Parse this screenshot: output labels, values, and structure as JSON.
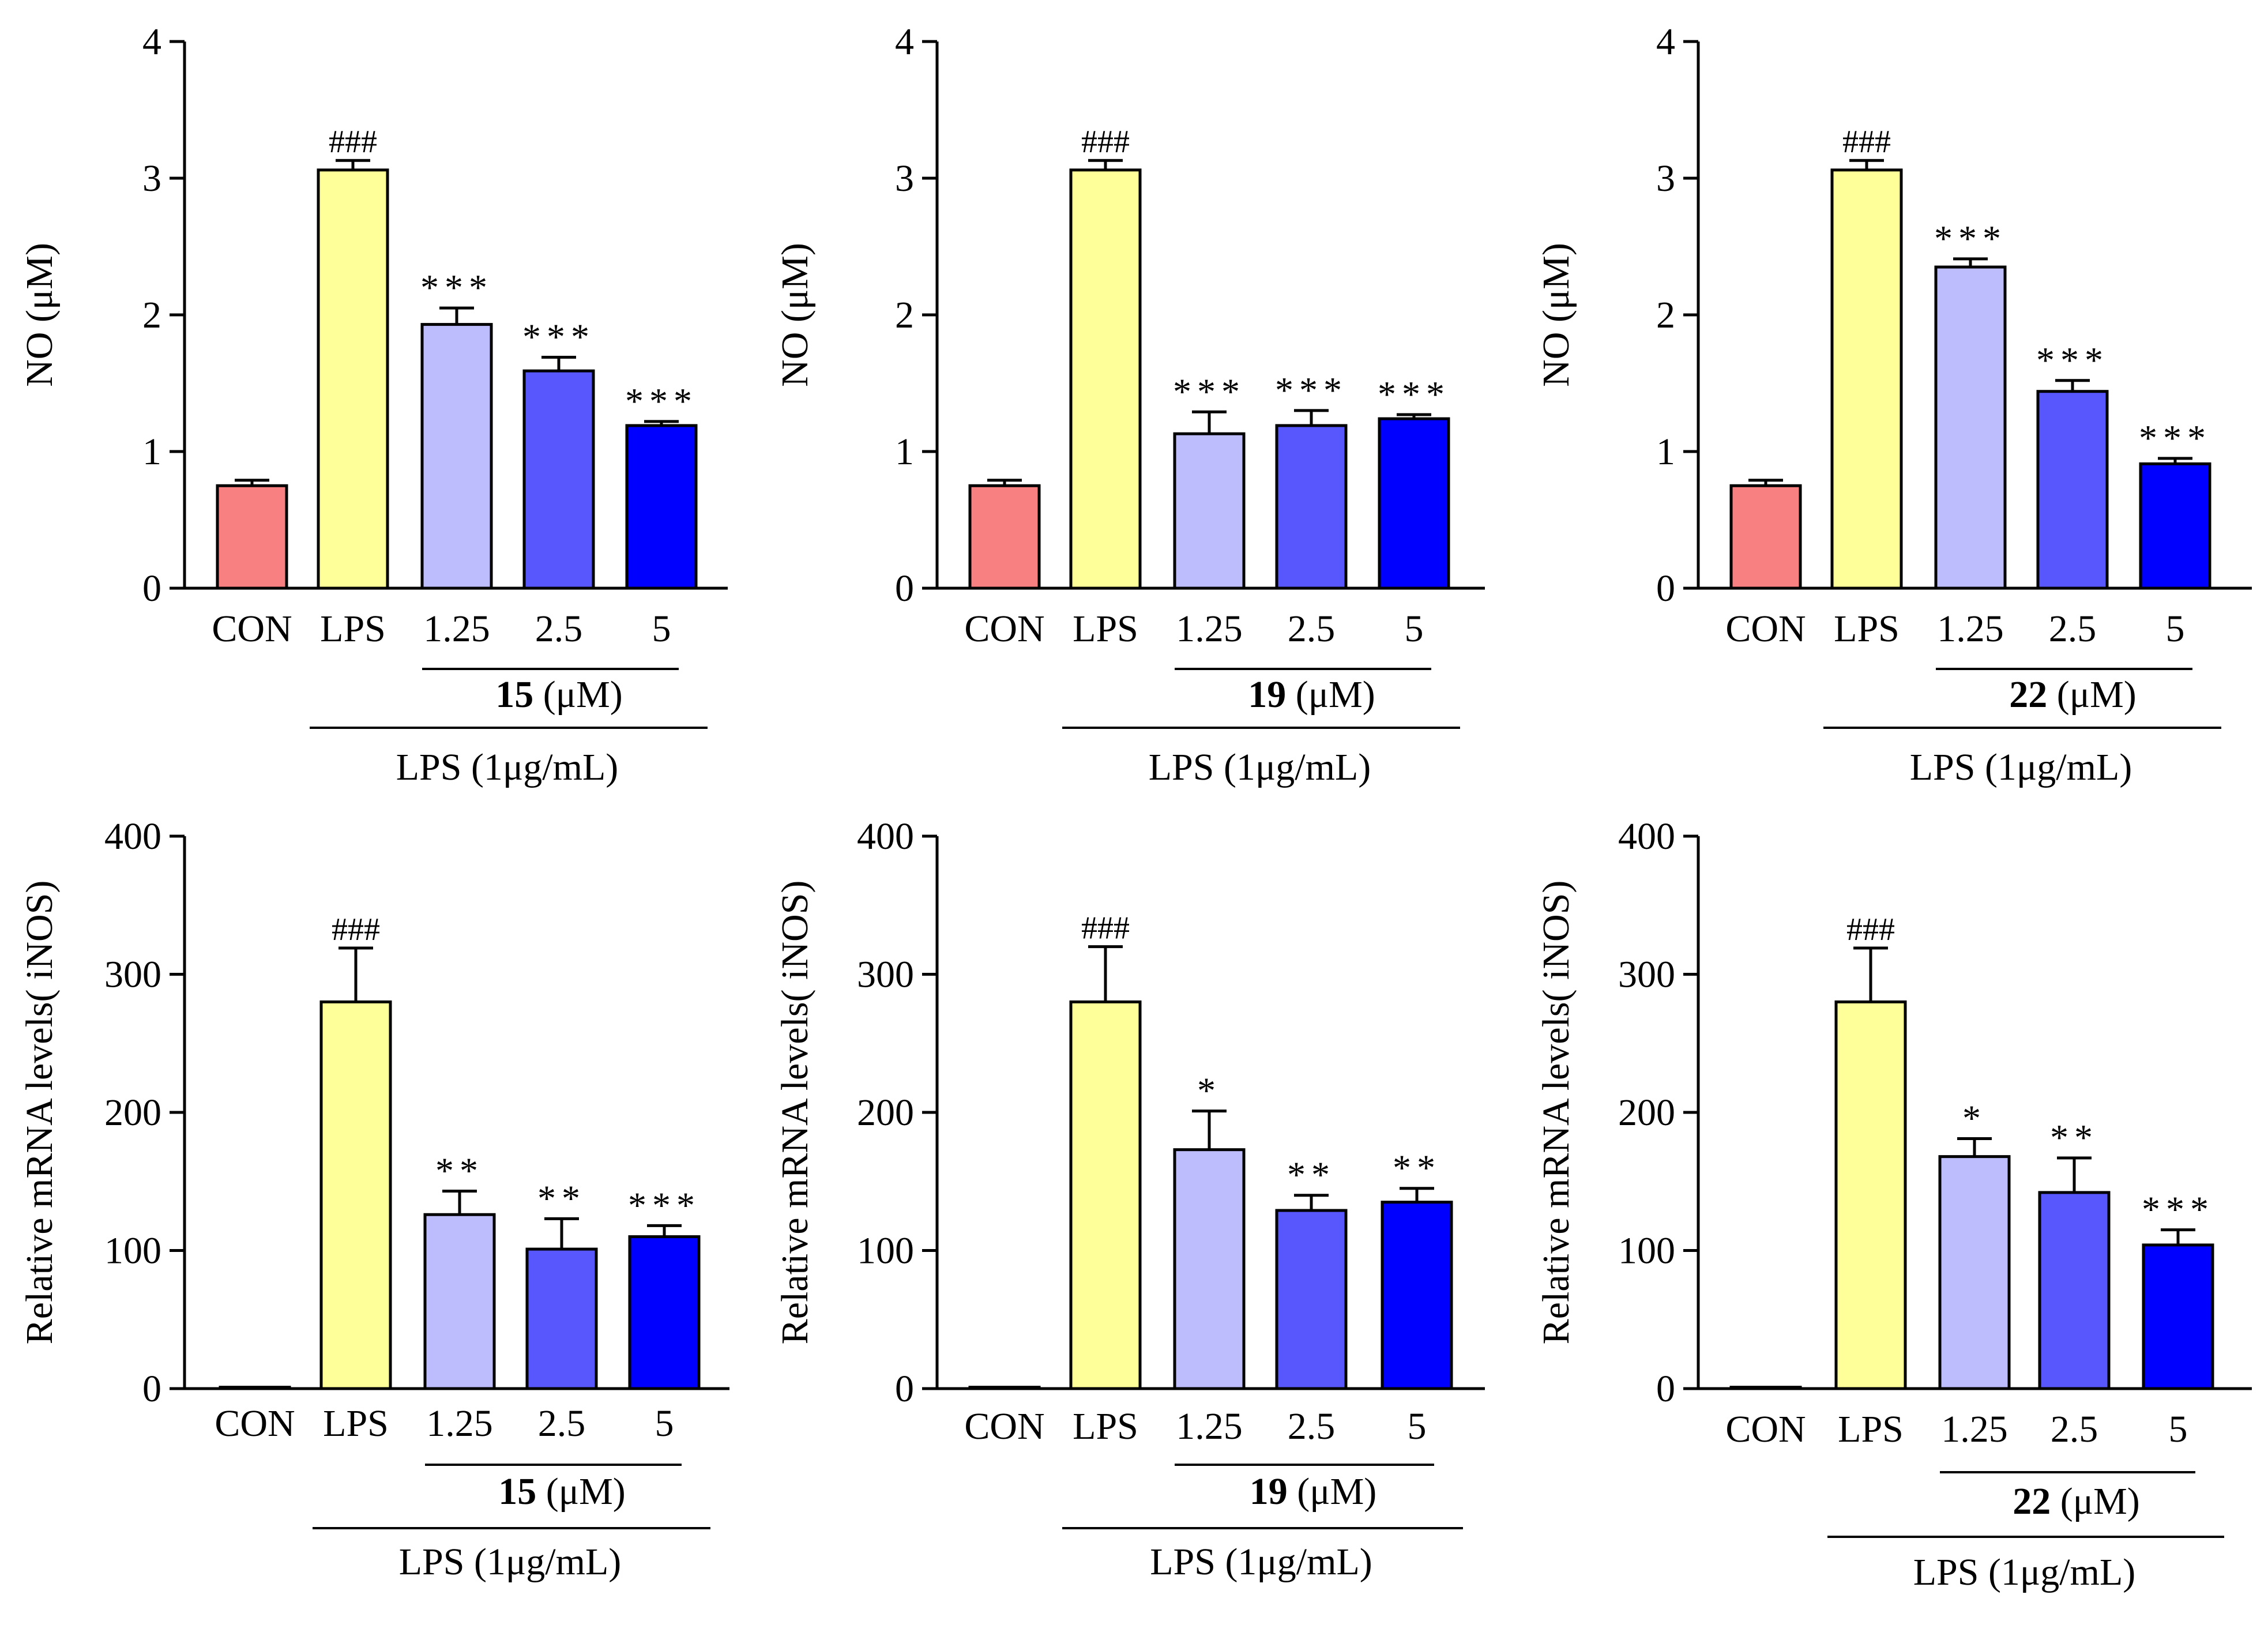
{
  "colors": [
    "#F98080",
    "#FFFF99",
    "#BDBDFD",
    "#5757FD",
    "#0000FF"
  ],
  "chart_data": [
    {
      "type": "bar",
      "panel": "top-left",
      "ylabel": "NO (μM)",
      "ylim": [
        0,
        4
      ],
      "yticks": [
        "0",
        "1",
        "2",
        "3",
        "4"
      ],
      "categories": [
        "CON",
        "LPS",
        "1.25",
        "2.5",
        "5"
      ],
      "values": [
        0.75,
        3.06,
        1.93,
        1.59,
        1.19
      ],
      "errors": [
        0.04,
        0.07,
        0.12,
        0.1,
        0.03
      ],
      "annotations": [
        "",
        "###",
        "***",
        "***",
        "***"
      ],
      "compound": "15",
      "compound_unit": " (μM)",
      "treatment_label": "LPS (1μg/mL)"
    },
    {
      "type": "bar",
      "panel": "top-middle",
      "ylabel": "NO (μM)",
      "ylim": [
        0,
        4
      ],
      "yticks": [
        "0",
        "1",
        "2",
        "3",
        "4"
      ],
      "categories": [
        "CON",
        "LPS",
        "1.25",
        "2.5",
        "5"
      ],
      "values": [
        0.75,
        3.06,
        1.13,
        1.19,
        1.24
      ],
      "errors": [
        0.04,
        0.07,
        0.16,
        0.11,
        0.03
      ],
      "annotations": [
        "",
        "###",
        "***",
        "***",
        "***"
      ],
      "compound": "19",
      "compound_unit": " (μM)",
      "treatment_label": "LPS (1μg/mL)"
    },
    {
      "type": "bar",
      "panel": "top-right",
      "ylabel": "NO (μM)",
      "ylim": [
        0,
        4
      ],
      "yticks": [
        "0",
        "1",
        "2",
        "3",
        "4"
      ],
      "categories": [
        "CON",
        "LPS",
        "1.25",
        "2.5",
        "5"
      ],
      "values": [
        0.75,
        3.06,
        2.35,
        1.44,
        0.91
      ],
      "errors": [
        0.04,
        0.07,
        0.06,
        0.08,
        0.04
      ],
      "annotations": [
        "",
        "###",
        "***",
        "***",
        "***"
      ],
      "compound": "22",
      "compound_unit": " (μM)",
      "treatment_label": "LPS (1μg/mL)"
    },
    {
      "type": "bar",
      "panel": "bottom-left",
      "ylabel": "Relative mRNA levels( iNOS)",
      "ylim": [
        0,
        400
      ],
      "yticks": [
        "0",
        "100",
        "200",
        "300",
        "400"
      ],
      "categories": [
        "CON",
        "LPS",
        "1.25",
        "2.5",
        "5"
      ],
      "values": [
        1,
        280,
        126,
        101,
        110
      ],
      "errors": [
        0,
        39,
        17,
        22,
        8
      ],
      "annotations": [
        "",
        "###",
        "**",
        "**",
        "***"
      ],
      "compound": "15",
      "compound_unit": " (μM)",
      "treatment_label": "LPS (1μg/mL)"
    },
    {
      "type": "bar",
      "panel": "bottom-middle",
      "ylabel": "Relative mRNA levels( iNOS)",
      "ylim": [
        0,
        400
      ],
      "yticks": [
        "0",
        "100",
        "200",
        "300",
        "400"
      ],
      "categories": [
        "CON",
        "LPS",
        "1.25",
        "2.5",
        "5"
      ],
      "values": [
        1,
        280,
        173,
        129,
        135
      ],
      "errors": [
        0,
        40,
        28,
        11,
        10
      ],
      "annotations": [
        "",
        "###",
        "*",
        "**",
        "**"
      ],
      "compound": "19",
      "compound_unit": " (μM)",
      "treatment_label": "LPS (1μg/mL)"
    },
    {
      "type": "bar",
      "panel": "bottom-right",
      "ylabel": "Relative mRNA levels( iNOS)",
      "ylim": [
        0,
        400
      ],
      "yticks": [
        "0",
        "100",
        "200",
        "300",
        "400"
      ],
      "categories": [
        "CON",
        "LPS",
        "1.25",
        "2.5",
        "5"
      ],
      "values": [
        1,
        280,
        168,
        142,
        104
      ],
      "errors": [
        0,
        39,
        13,
        25,
        11
      ],
      "annotations": [
        "",
        "###",
        "*",
        "**",
        "***"
      ],
      "compound": "22",
      "compound_unit": " (μM)",
      "treatment_label": "LPS (1μg/mL)"
    }
  ]
}
